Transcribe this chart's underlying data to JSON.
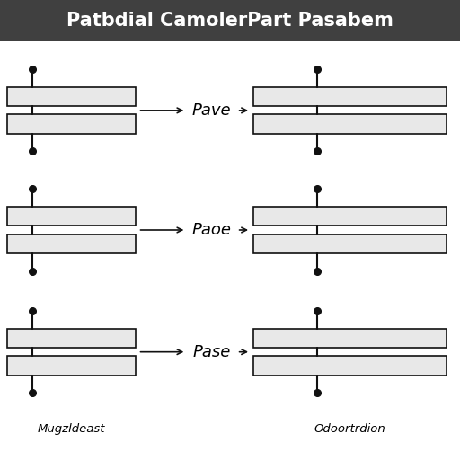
{
  "title": "Patbdial CamolerPart Pasabem",
  "title_bg": "#404040",
  "title_color": "#ffffff",
  "title_fontsize": 15,
  "left_label": "Mugzldeast",
  "right_label": "Odoortrdion",
  "row_labels": [
    "Pave",
    "Paoe",
    "Pase"
  ],
  "plate_color": "#e8e8e8",
  "plate_edge": "#111111",
  "bg_color": "#ffffff",
  "fig_width": 5.12,
  "fig_height": 5.12,
  "dpi": 100
}
